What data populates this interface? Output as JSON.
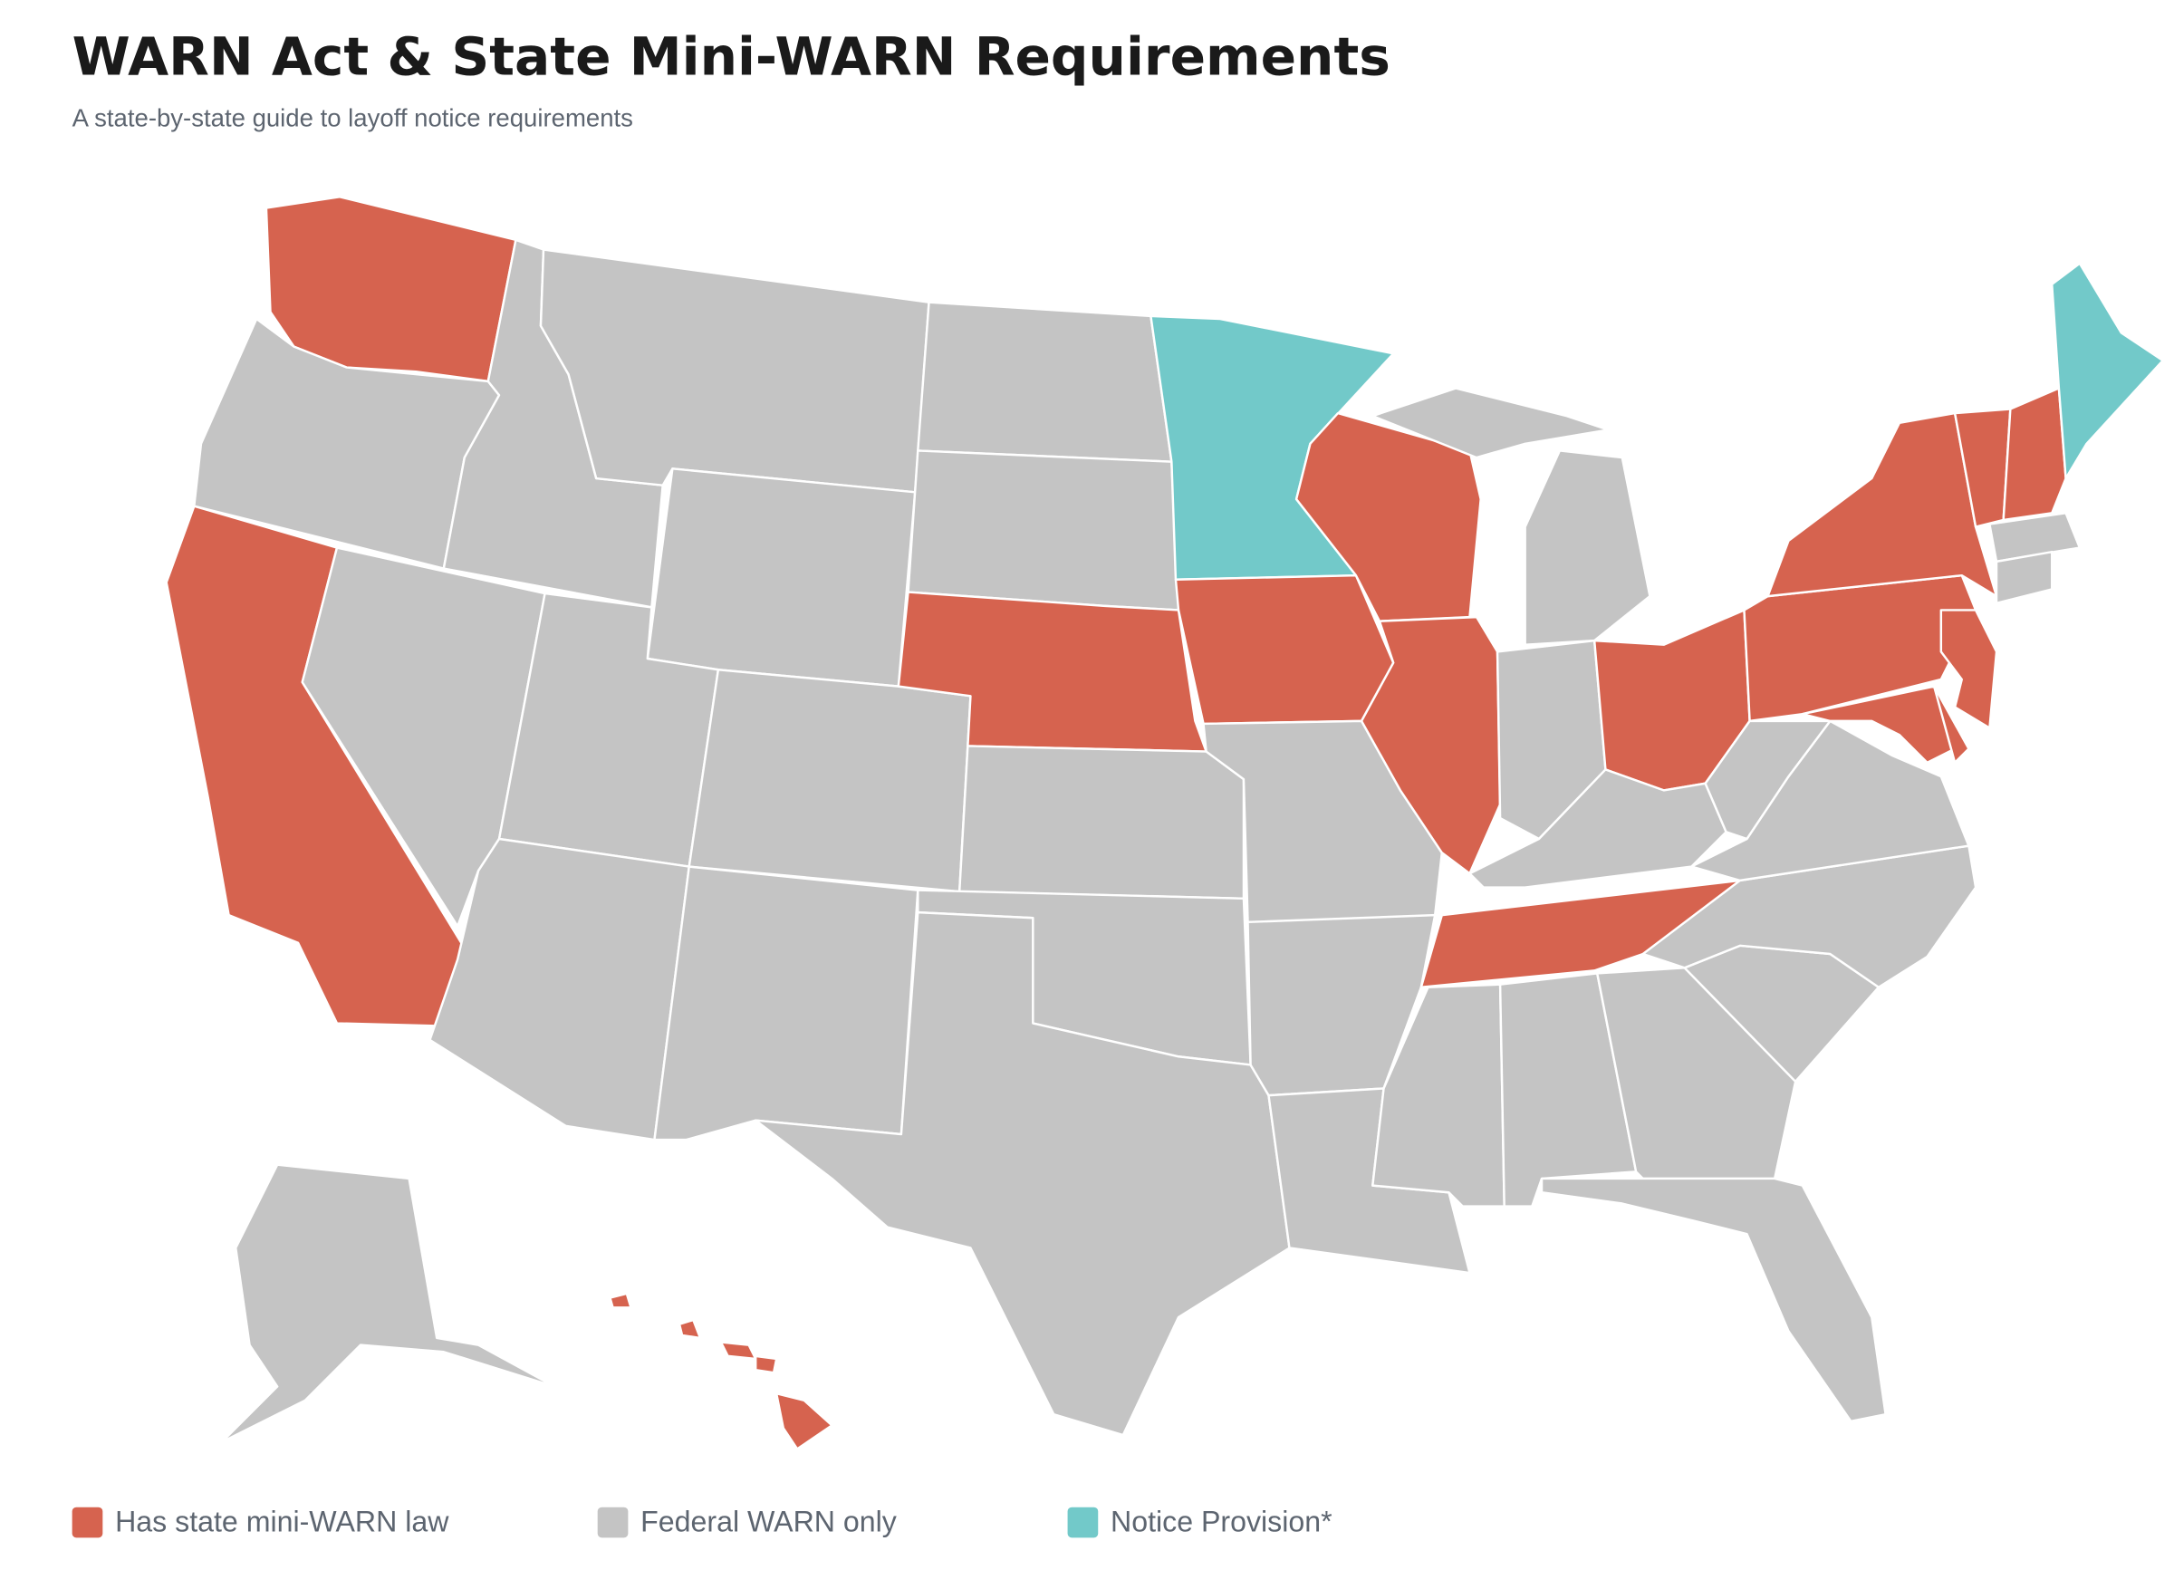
{
  "header": {
    "title": "WARN Act & State Mini-WARN Requirements",
    "subtitle": "A state-by-state guide to layoff notice requirements"
  },
  "legend": [
    {
      "label": "Has state mini-WARN law",
      "color": "#d6634f"
    },
    {
      "label": "Federal WARN only",
      "color": "#c4c4c4"
    },
    {
      "label": "Notice Provision*",
      "color": "#72c9c9"
    }
  ]
}
